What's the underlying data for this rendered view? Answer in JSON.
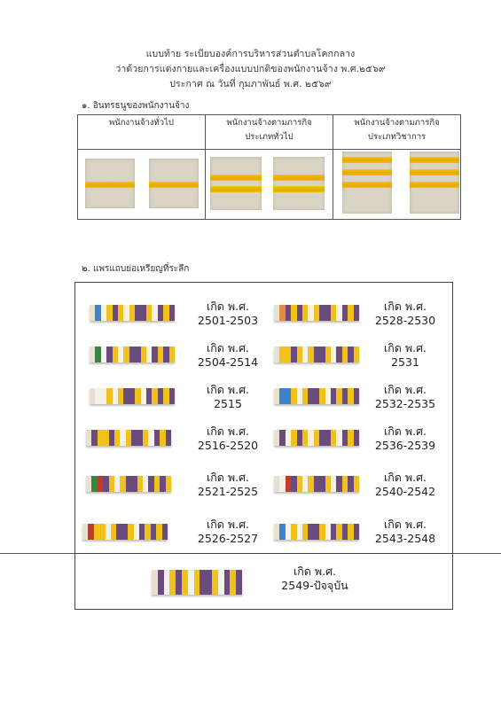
{
  "header": {
    "line1": "แบบท้าย ระเบียบองค์การบริหารส่วนตำบลโคกกลาง",
    "line2": "ว่าด้วยการแต่งกายและเครื่องแบบปกติของพนักงานจ้าง พ.ศ.๒๕๖๙",
    "line3": "ประกาศ ณ วันที่         กุมภาพันธ์ พ.ศ. ๒๕๖๙"
  },
  "section1": {
    "title": "๑. อินทรธนูของพนักงานจ้าง",
    "columns": [
      {
        "line1": "พนักงานจ้างทั่วไป",
        "line2": "",
        "stripes": 1
      },
      {
        "line1": "พนักงานจ้างตามภารกิจ",
        "line2": "ประเภททั่วไป",
        "stripes": 2
      },
      {
        "line1": "พนักงานจ้างตามภารกิจ",
        "line2": "ประเภทวิชาการ",
        "stripes": 3
      }
    ]
  },
  "section2": {
    "title": "๒. แพรแถบย่อเหรียญที่ระลึก",
    "ribbons": [
      {
        "line1": "เกิด พ.ศ.",
        "line2": "2501-2503"
      },
      {
        "line1": "เกิด พ.ศ.",
        "line2": "2504-2514"
      },
      {
        "line1": "เกิด พ.ศ.",
        "line2": "2515"
      },
      {
        "line1": "เกิด พ.ศ.",
        "line2": "2516-2520"
      },
      {
        "line1": "เกิด พ.ศ.",
        "line2": "2521-2525"
      },
      {
        "line1": "เกิด พ.ศ.",
        "line2": "2526-2527"
      },
      {
        "line1": "เกิด พ.ศ.",
        "line2": "2528-2530"
      },
      {
        "line1": "เกิด พ.ศ.",
        "line2": "2531"
      },
      {
        "line1": "เกิด พ.ศ.",
        "line2": "2532-2535"
      },
      {
        "line1": "เกิด พ.ศ.",
        "line2": "2536-2539"
      },
      {
        "line1": "เกิด พ.ศ.",
        "line2": "2540-2542"
      },
      {
        "line1": "เกิด พ.ศ.",
        "line2": "2543-2548"
      },
      {
        "line1": "เกิด พ.ศ.",
        "line2": "2549-ปัจจุบัน"
      }
    ]
  },
  "colors": {
    "gold": "#f1c21b",
    "purple": "#6b4a7c",
    "white": "#f3f1ea",
    "ribbon_tab_a": "#e8e1d2",
    "accent_blue": "#3c84c8",
    "accent_green": "#2f8a3c",
    "accent_orange": "#e98a3a",
    "accent_red": "#c23a2a"
  }
}
